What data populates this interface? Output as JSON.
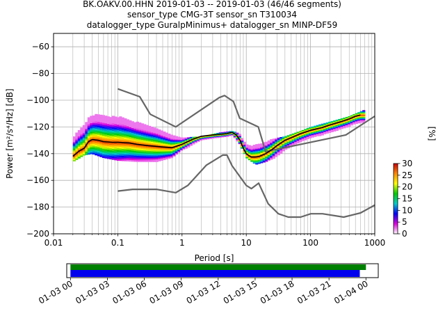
{
  "title_lines": [
    "BK.OAKV.00.HHN   2019-01-03 -- 2019-01-03  (46/46 segments)",
    "sensor_type CMG-3T sensor_sn T310034",
    "datalogger_type GuralpMinimus+ datalogger_sn MINP-DF59"
  ],
  "chart_data": [
    {
      "type": "heatmap",
      "xlabel": "Period [s]",
      "ylabel": "Power [m²/s⁴/Hz] [dB]",
      "x_scale": "log",
      "xlim": [
        0.01,
        1000
      ],
      "ylim": [
        -200,
        -50
      ],
      "x_ticks": [
        0.01,
        0.1,
        1,
        10,
        100,
        1000
      ],
      "x_tick_labels": [
        "0.01",
        "0.1",
        "1",
        "10",
        "100",
        "1000"
      ],
      "y_ticks": [
        -200,
        -180,
        -160,
        -140,
        -120,
        -100,
        -80,
        -60
      ],
      "grid": true,
      "colorbar": {
        "label": "[%]",
        "range": [
          0,
          30
        ],
        "ticks": [
          0,
          5,
          10,
          15,
          20,
          25,
          30
        ],
        "colors": [
          "#ffffff",
          "#dd00dd",
          "#0000ff",
          "#00cccc",
          "#00cc00",
          "#ffff00",
          "#ff8800",
          "#cc0000"
        ]
      },
      "nhnm": {
        "name": "NHNM",
        "color": "#666666",
        "x": [
          0.1,
          0.22,
          0.32,
          0.8,
          3.8,
          4.6,
          6.3,
          7.9,
          15.4,
          20,
          354.8,
          1000
        ],
        "y": [
          -91.5,
          -97.4,
          -110.5,
          -120,
          -98,
          -96.5,
          -101,
          -113.5,
          -120,
          -138.5,
          -126,
          -112
        ]
      },
      "nlnm": {
        "name": "NLNM",
        "color": "#666666",
        "x": [
          0.1,
          0.17,
          0.4,
          0.8,
          1.24,
          2.4,
          4.3,
          5,
          6,
          10,
          12,
          15.6,
          21.9,
          31.6,
          45,
          70,
          101,
          154,
          328,
          600,
          1000
        ],
        "y": [
          -168,
          -166.7,
          -166.7,
          -169.2,
          -163.7,
          -148.6,
          -141.1,
          -141.1,
          -149,
          -163.8,
          -166.2,
          -162.1,
          -177.5,
          -185,
          -187.5,
          -187.5,
          -185,
          -185,
          -187.5,
          -184.4,
          -178.5
        ]
      },
      "mean": {
        "name": "mean",
        "color": "#000000",
        "x": [
          0.02,
          0.025,
          0.03,
          0.035,
          0.04,
          0.05,
          0.06,
          0.08,
          0.1,
          0.15,
          0.2,
          0.3,
          0.5,
          0.7,
          1,
          1.5,
          2,
          3,
          4,
          5,
          6,
          7,
          8,
          9,
          10,
          11,
          12,
          14,
          16,
          20,
          25,
          30,
          40,
          50,
          70,
          100,
          150,
          200,
          300,
          400,
          500,
          600
        ],
        "y": [
          -142,
          -138,
          -136,
          -131,
          -129.5,
          -130,
          -131,
          -131.5,
          -131.5,
          -132,
          -133,
          -134,
          -135,
          -135.5,
          -133,
          -129,
          -127,
          -126,
          -125.5,
          -125,
          -124,
          -126,
          -130,
          -136,
          -140,
          -141.5,
          -142.5,
          -142.5,
          -142,
          -140,
          -137,
          -134,
          -130,
          -128,
          -125,
          -122.5,
          -120.5,
          -118.5,
          -116,
          -114,
          -112,
          -111
        ]
      },
      "envelope_upper": {
        "x": [
          0.02,
          0.03,
          0.04,
          0.06,
          0.1,
          0.2,
          0.4,
          0.7,
          1,
          2,
          4,
          6,
          8,
          10,
          14,
          20,
          40,
          70,
          100,
          200,
          400,
          700
        ],
        "y": [
          -120,
          -110,
          -106,
          -107,
          -110,
          -116,
          -121,
          -126,
          -128,
          -127,
          -124,
          -123,
          -125,
          -130,
          -131,
          -130,
          -127,
          -123,
          -120,
          -116,
          -112,
          -107
        ]
      },
      "envelope_lower": {
        "x": [
          0.02,
          0.03,
          0.04,
          0.06,
          0.1,
          0.2,
          0.4,
          0.7,
          1,
          2,
          4,
          6,
          8,
          10,
          14,
          20,
          40,
          70,
          100,
          200,
          400,
          700
        ],
        "y": [
          -146,
          -141,
          -140,
          -143,
          -145,
          -146,
          -146,
          -143,
          -137,
          -132,
          -128,
          -127,
          -133,
          -143,
          -148,
          -146,
          -140,
          -134,
          -130,
          -126,
          -122,
          -117
        ]
      }
    },
    {
      "type": "bar",
      "x_tick_labels": [
        "01-03 00",
        "01-03 03",
        "01-03 06",
        "01-03 09",
        "01-03 12",
        "01-03 15",
        "01-03 18",
        "01-03 21",
        "01-04 00"
      ],
      "xlim_hours": [
        -0.3,
        25
      ],
      "series": [
        {
          "color": "#008000",
          "start_hour": 0,
          "end_hour": 24.0
        },
        {
          "color": "#0000ee",
          "start_hour": 0,
          "end_hour": 23.5
        }
      ]
    }
  ]
}
